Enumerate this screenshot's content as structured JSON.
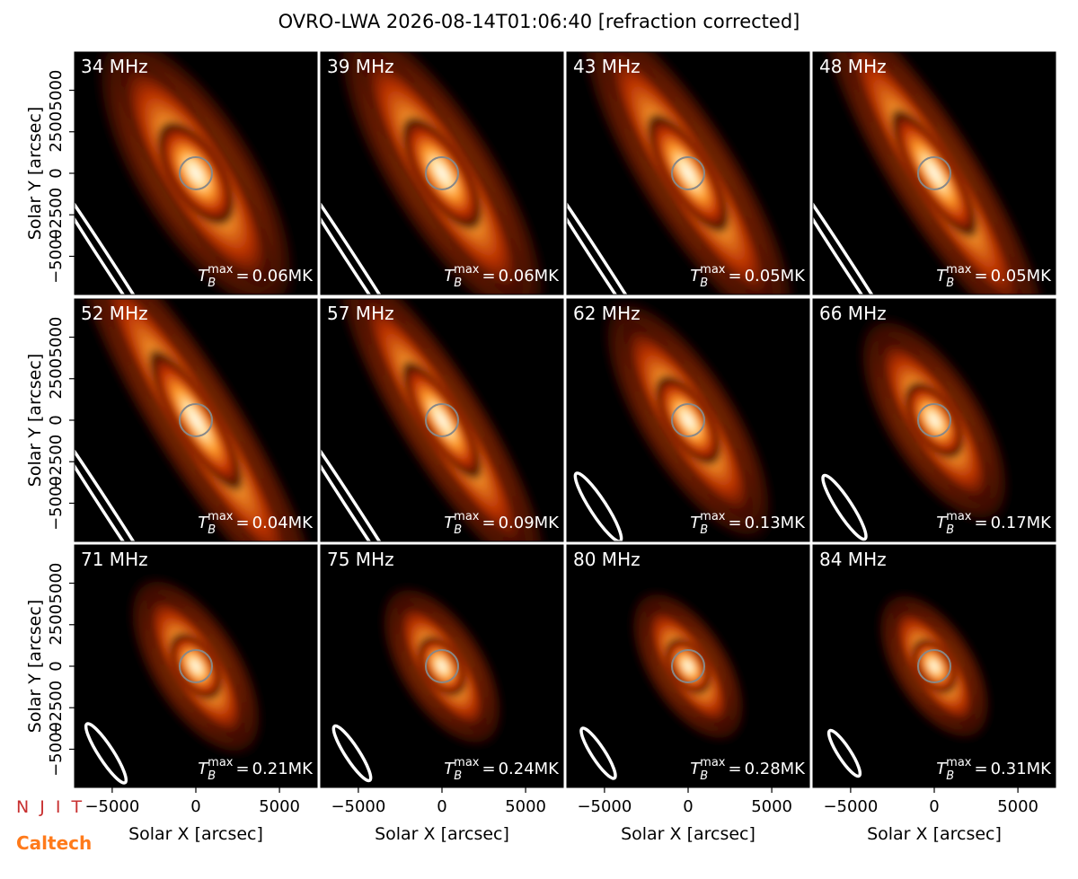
{
  "chart_data": {
    "type": "image-grid",
    "title": "OVRO-LWA 2026-08-14T01:06:40 [refraction corrected]",
    "x_label": "Solar X [arcsec]",
    "y_label": "Solar Y [arcsec]",
    "xlim": [
      -7250,
      7250
    ],
    "ylim": [
      -7300,
      7300
    ],
    "xticks": [
      {
        "value": -5000,
        "label": "−5000"
      },
      0,
      5000
    ],
    "yticks": [
      {
        "value": -5000,
        "label": "−5000"
      },
      {
        "value": -2500,
        "label": "−2500"
      },
      0,
      2500,
      5000
    ],
    "tb_symbol": "T",
    "tb_sub": "B",
    "tb_sup": "max",
    "tb_equals": "=",
    "panels": [
      {
        "label": "34 MHz",
        "tb_max": "0.06MK"
      },
      {
        "label": "39 MHz",
        "tb_max": "0.06MK"
      },
      {
        "label": "43 MHz",
        "tb_max": "0.05MK"
      },
      {
        "label": "48 MHz",
        "tb_max": "0.05MK"
      },
      {
        "label": "52 MHz",
        "tb_max": "0.04MK"
      },
      {
        "label": "57 MHz",
        "tb_max": "0.09MK"
      },
      {
        "label": "62 MHz",
        "tb_max": "0.13MK"
      },
      {
        "label": "66 MHz",
        "tb_max": "0.17MK"
      },
      {
        "label": "71 MHz",
        "tb_max": "0.21MK"
      },
      {
        "label": "75 MHz",
        "tb_max": "0.24MK"
      },
      {
        "label": "80 MHz",
        "tb_max": "0.28MK"
      },
      {
        "label": "84 MHz",
        "tb_max": "0.31MK"
      }
    ]
  },
  "logos": {
    "njit": "N J I T",
    "caltech": "Caltech"
  }
}
